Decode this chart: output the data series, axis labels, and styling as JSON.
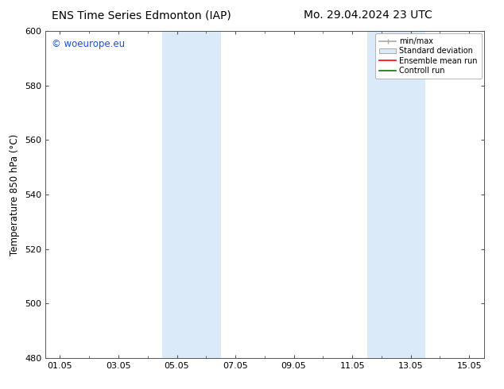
{
  "title_left": "ENS Time Series Edmonton (IAP)",
  "title_right": "Mo. 29.04.2024 23 UTC",
  "ylabel": "Temperature 850 hPa (°C)",
  "ylim": [
    480,
    600
  ],
  "yticks": [
    480,
    500,
    520,
    540,
    560,
    580,
    600
  ],
  "xtick_labels": [
    "01.05",
    "03.05",
    "05.05",
    "07.05",
    "09.05",
    "11.05",
    "13.05",
    "15.05"
  ],
  "xtick_positions": [
    0,
    2,
    4,
    6,
    8,
    10,
    12,
    14
  ],
  "xlim": [
    -0.5,
    14.5
  ],
  "shaded_bands": [
    {
      "x_start": 3.5,
      "x_end": 5.5
    },
    {
      "x_start": 10.5,
      "x_end": 12.5
    }
  ],
  "shade_color": "#daeaf8",
  "watermark_text": "© woeurope.eu",
  "watermark_color": "#1a52cc",
  "legend_labels": [
    "min/max",
    "Standard deviation",
    "Ensemble mean run",
    "Controll run"
  ],
  "legend_line_color": "#aaaaaa",
  "legend_shade_color": "#daeaf8",
  "legend_shade_edge": "#aaaaaa",
  "legend_red": "#ff0000",
  "legend_green": "#007700",
  "bg_color": "#ffffff",
  "axis_color": "#555555",
  "title_fontsize": 10,
  "label_fontsize": 8.5,
  "tick_fontsize": 8
}
